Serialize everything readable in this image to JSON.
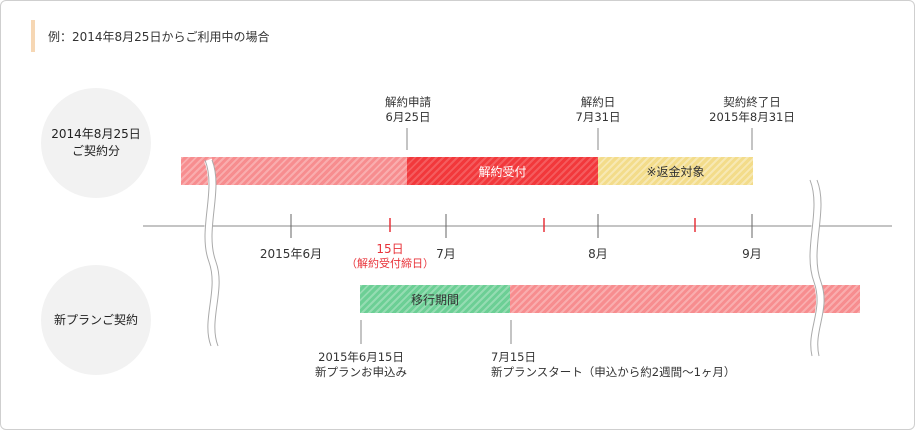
{
  "note": "例：2014年8月25日からご利用中の場合",
  "rows": {
    "current_contract": "2014年8月25日\nご契約分",
    "new_plan": "新プランご契約"
  },
  "top_labels": {
    "cancel_request": "解約申請\n6月25日",
    "cancel_date": "解約日\n7月31日",
    "contract_end": "契約終了日\n2015年8月31日"
  },
  "bars": {
    "cancel_accept": "解約受付",
    "refund": "※返金対象",
    "migration": "移行期間"
  },
  "timeline": {
    "june": "2015年6月",
    "deadline_day": "15日",
    "deadline_note": "（解約受付締日）",
    "july": "7月",
    "aug": "8月",
    "sep": "9月"
  },
  "bottom_labels": {
    "apply": "2015年6月15日\n新プランお申込み",
    "start": "7月15日\n新プランスタート（申込から約2週間〜1ヶ月）"
  },
  "colors": {
    "pink": "#f78d8f",
    "red": "#f2383b",
    "yellow": "#f3dc8a",
    "green": "#6ccf95",
    "accent_red": "#e8333a"
  }
}
